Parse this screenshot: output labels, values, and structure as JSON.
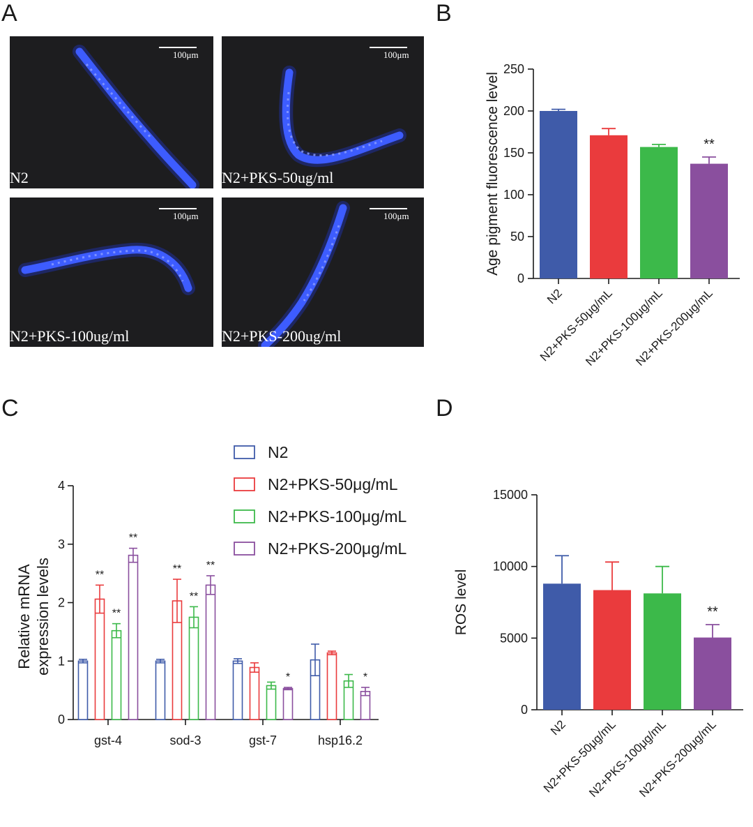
{
  "panels": {
    "a": "A",
    "b": "B",
    "c": "C",
    "d": "D"
  },
  "micrographs": [
    {
      "condition": "N2",
      "scale_label": "100μm"
    },
    {
      "condition": "N2+PKS-50ug/ml",
      "scale_label": "100μm"
    },
    {
      "condition": "N2+PKS-100ug/ml",
      "scale_label": "100μm"
    },
    {
      "condition": "N2+PKS-200ug/ml",
      "scale_label": "100μm"
    }
  ],
  "colors": {
    "blue": "#3f5ba9",
    "red": "#ea3b3d",
    "green": "#3cb94a",
    "purple": "#8a4f9e",
    "micro_bg": "#1d1d1f",
    "worm": "#3d5cff"
  },
  "chart_data": [
    {
      "id": "B",
      "type": "bar",
      "categories": [
        "N2",
        "N2+PKS-50μg/mL",
        "N2+PKS-100μg/mL",
        "N2+PKS-200μg/mL"
      ],
      "values": [
        200,
        171,
        157,
        137
      ],
      "errors": [
        2,
        8,
        3,
        8
      ],
      "significance": [
        "",
        "",
        "",
        "**"
      ],
      "ylabel": "Age pigment fluorescence level",
      "ylim": [
        0,
        250
      ],
      "yticks": [
        0,
        50,
        100,
        150,
        200,
        250
      ],
      "grid": false,
      "legend": "none"
    },
    {
      "id": "C",
      "type": "bar",
      "categories": [
        "gst-4",
        "sod-3",
        "gst-7",
        "hsp16.2"
      ],
      "series": [
        {
          "name": "N2",
          "values": [
            1.0,
            1.0,
            1.0,
            1.02
          ],
          "errors": [
            0.03,
            0.03,
            0.04,
            0.27
          ],
          "significance": [
            "",
            "",
            "",
            ""
          ]
        },
        {
          "name": "N2+PKS-50μg/mL",
          "values": [
            2.06,
            2.03,
            0.89,
            1.14
          ],
          "errors": [
            0.24,
            0.37,
            0.08,
            0.03
          ],
          "significance": [
            "**",
            "**",
            "",
            ""
          ]
        },
        {
          "name": "N2+PKS-100μg/mL",
          "values": [
            1.52,
            1.75,
            0.58,
            0.66
          ],
          "errors": [
            0.12,
            0.18,
            0.06,
            0.11
          ],
          "significance": [
            "**",
            "**",
            "",
            ""
          ]
        },
        {
          "name": "N2+PKS-200μg/mL",
          "values": [
            2.81,
            2.3,
            0.53,
            0.48
          ],
          "errors": [
            0.12,
            0.16,
            0.02,
            0.07
          ],
          "significance": [
            "**",
            "**",
            "*",
            "*"
          ]
        }
      ],
      "ylabel_lines": [
        "Relative mRNA",
        "expression levels"
      ],
      "ylim": [
        0,
        4
      ],
      "yticks": [
        0,
        1,
        2,
        3,
        4
      ],
      "style": "hollow",
      "grid": false,
      "legend": "top-right"
    },
    {
      "id": "D",
      "type": "bar",
      "categories": [
        "N2",
        "N2+PKS-50μg/mL",
        "N2+PKS-100μg/mL",
        "N2+PKS-200μg/mL"
      ],
      "values": [
        8800,
        8350,
        8120,
        5040
      ],
      "errors": [
        1950,
        1960,
        1880,
        900
      ],
      "significance": [
        "",
        "",
        "",
        "**"
      ],
      "ylabel": "ROS level",
      "ylim": [
        0,
        15000
      ],
      "yticks": [
        0,
        5000,
        10000,
        15000
      ],
      "grid": false,
      "legend": "none"
    }
  ]
}
